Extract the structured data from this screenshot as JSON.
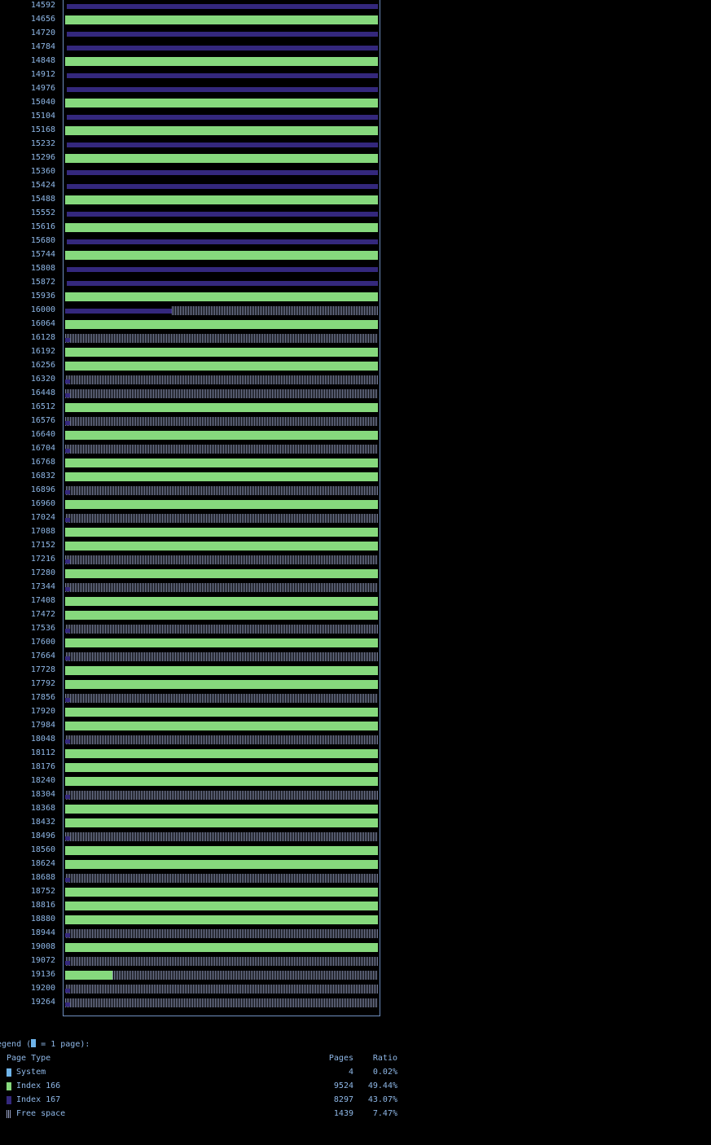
{
  "colors": {
    "system": "#6fb4ea",
    "index_166": "#86d97d",
    "index_167": "#34287d",
    "free_space": "#9aa4c8",
    "text": "#8fb8e8",
    "background": "#000000"
  },
  "page_map": {
    "rows": [
      {
        "offset": "14592",
        "type": "167"
      },
      {
        "offset": "14656",
        "type": "166"
      },
      {
        "offset": "14720",
        "type": "167"
      },
      {
        "offset": "14784",
        "type": "167"
      },
      {
        "offset": "14848",
        "type": "166"
      },
      {
        "offset": "14912",
        "type": "167"
      },
      {
        "offset": "14976",
        "type": "167"
      },
      {
        "offset": "15040",
        "type": "166"
      },
      {
        "offset": "15104",
        "type": "167"
      },
      {
        "offset": "15168",
        "type": "166"
      },
      {
        "offset": "15232",
        "type": "167"
      },
      {
        "offset": "15296",
        "type": "166"
      },
      {
        "offset": "15360",
        "type": "167"
      },
      {
        "offset": "15424",
        "type": "167"
      },
      {
        "offset": "15488",
        "type": "166"
      },
      {
        "offset": "15552",
        "type": "167"
      },
      {
        "offset": "15616",
        "type": "166"
      },
      {
        "offset": "15680",
        "type": "167"
      },
      {
        "offset": "15744",
        "type": "166"
      },
      {
        "offset": "15808",
        "type": "167"
      },
      {
        "offset": "15872",
        "type": "167"
      },
      {
        "offset": "15936",
        "type": "166"
      },
      {
        "offset": "16000",
        "type": "167-free",
        "fill": 0.34
      },
      {
        "offset": "16064",
        "type": "166"
      },
      {
        "offset": "16128",
        "type": "free"
      },
      {
        "offset": "16192",
        "type": "166"
      },
      {
        "offset": "16256",
        "type": "166"
      },
      {
        "offset": "16320",
        "type": "free"
      },
      {
        "offset": "16448",
        "type": "free"
      },
      {
        "offset": "16512",
        "type": "166"
      },
      {
        "offset": "16576",
        "type": "free"
      },
      {
        "offset": "16640",
        "type": "166"
      },
      {
        "offset": "16704",
        "type": "free"
      },
      {
        "offset": "16768",
        "type": "166"
      },
      {
        "offset": "16832",
        "type": "166"
      },
      {
        "offset": "16896",
        "type": "free"
      },
      {
        "offset": "16960",
        "type": "166"
      },
      {
        "offset": "17024",
        "type": "free"
      },
      {
        "offset": "17088",
        "type": "166"
      },
      {
        "offset": "17152",
        "type": "166"
      },
      {
        "offset": "17216",
        "type": "free"
      },
      {
        "offset": "17280",
        "type": "166"
      },
      {
        "offset": "17344",
        "type": "free"
      },
      {
        "offset": "17408",
        "type": "166"
      },
      {
        "offset": "17472",
        "type": "166"
      },
      {
        "offset": "17536",
        "type": "free"
      },
      {
        "offset": "17600",
        "type": "166"
      },
      {
        "offset": "17664",
        "type": "free"
      },
      {
        "offset": "17728",
        "type": "166"
      },
      {
        "offset": "17792",
        "type": "166"
      },
      {
        "offset": "17856",
        "type": "free"
      },
      {
        "offset": "17920",
        "type": "166"
      },
      {
        "offset": "17984",
        "type": "166"
      },
      {
        "offset": "18048",
        "type": "free"
      },
      {
        "offset": "18112",
        "type": "166"
      },
      {
        "offset": "18176",
        "type": "166"
      },
      {
        "offset": "18240",
        "type": "166"
      },
      {
        "offset": "18304",
        "type": "free"
      },
      {
        "offset": "18368",
        "type": "166"
      },
      {
        "offset": "18432",
        "type": "166"
      },
      {
        "offset": "18496",
        "type": "free"
      },
      {
        "offset": "18560",
        "type": "166"
      },
      {
        "offset": "18624",
        "type": "166"
      },
      {
        "offset": "18688",
        "type": "free"
      },
      {
        "offset": "18752",
        "type": "166"
      },
      {
        "offset": "18816",
        "type": "166"
      },
      {
        "offset": "18880",
        "type": "166"
      },
      {
        "offset": "18944",
        "type": "free"
      },
      {
        "offset": "19008",
        "type": "166"
      },
      {
        "offset": "19072",
        "type": "free"
      },
      {
        "offset": "19136",
        "type": "166-free",
        "fill": 0.15
      },
      {
        "offset": "19200",
        "type": "free"
      },
      {
        "offset": "19264",
        "type": "free"
      }
    ]
  },
  "legend": {
    "title_prefix": "egend (",
    "title_suffix": " = 1 page):",
    "header": {
      "type": "Page Type",
      "pages": "Pages",
      "ratio": "Ratio"
    },
    "entries": [
      {
        "key": "system",
        "name": "System",
        "pages": "4",
        "ratio": "0.02%",
        "swatch": "solid"
      },
      {
        "key": "index_166",
        "name": "Index 166",
        "pages": "9524",
        "ratio": "49.44%",
        "swatch": "solid"
      },
      {
        "key": "index_167",
        "name": "Index 167",
        "pages": "8297",
        "ratio": "43.07%",
        "swatch": "solid"
      },
      {
        "key": "free_space",
        "name": "Free space",
        "pages": "1439",
        "ratio": "7.47%",
        "swatch": "dotted"
      }
    ]
  }
}
